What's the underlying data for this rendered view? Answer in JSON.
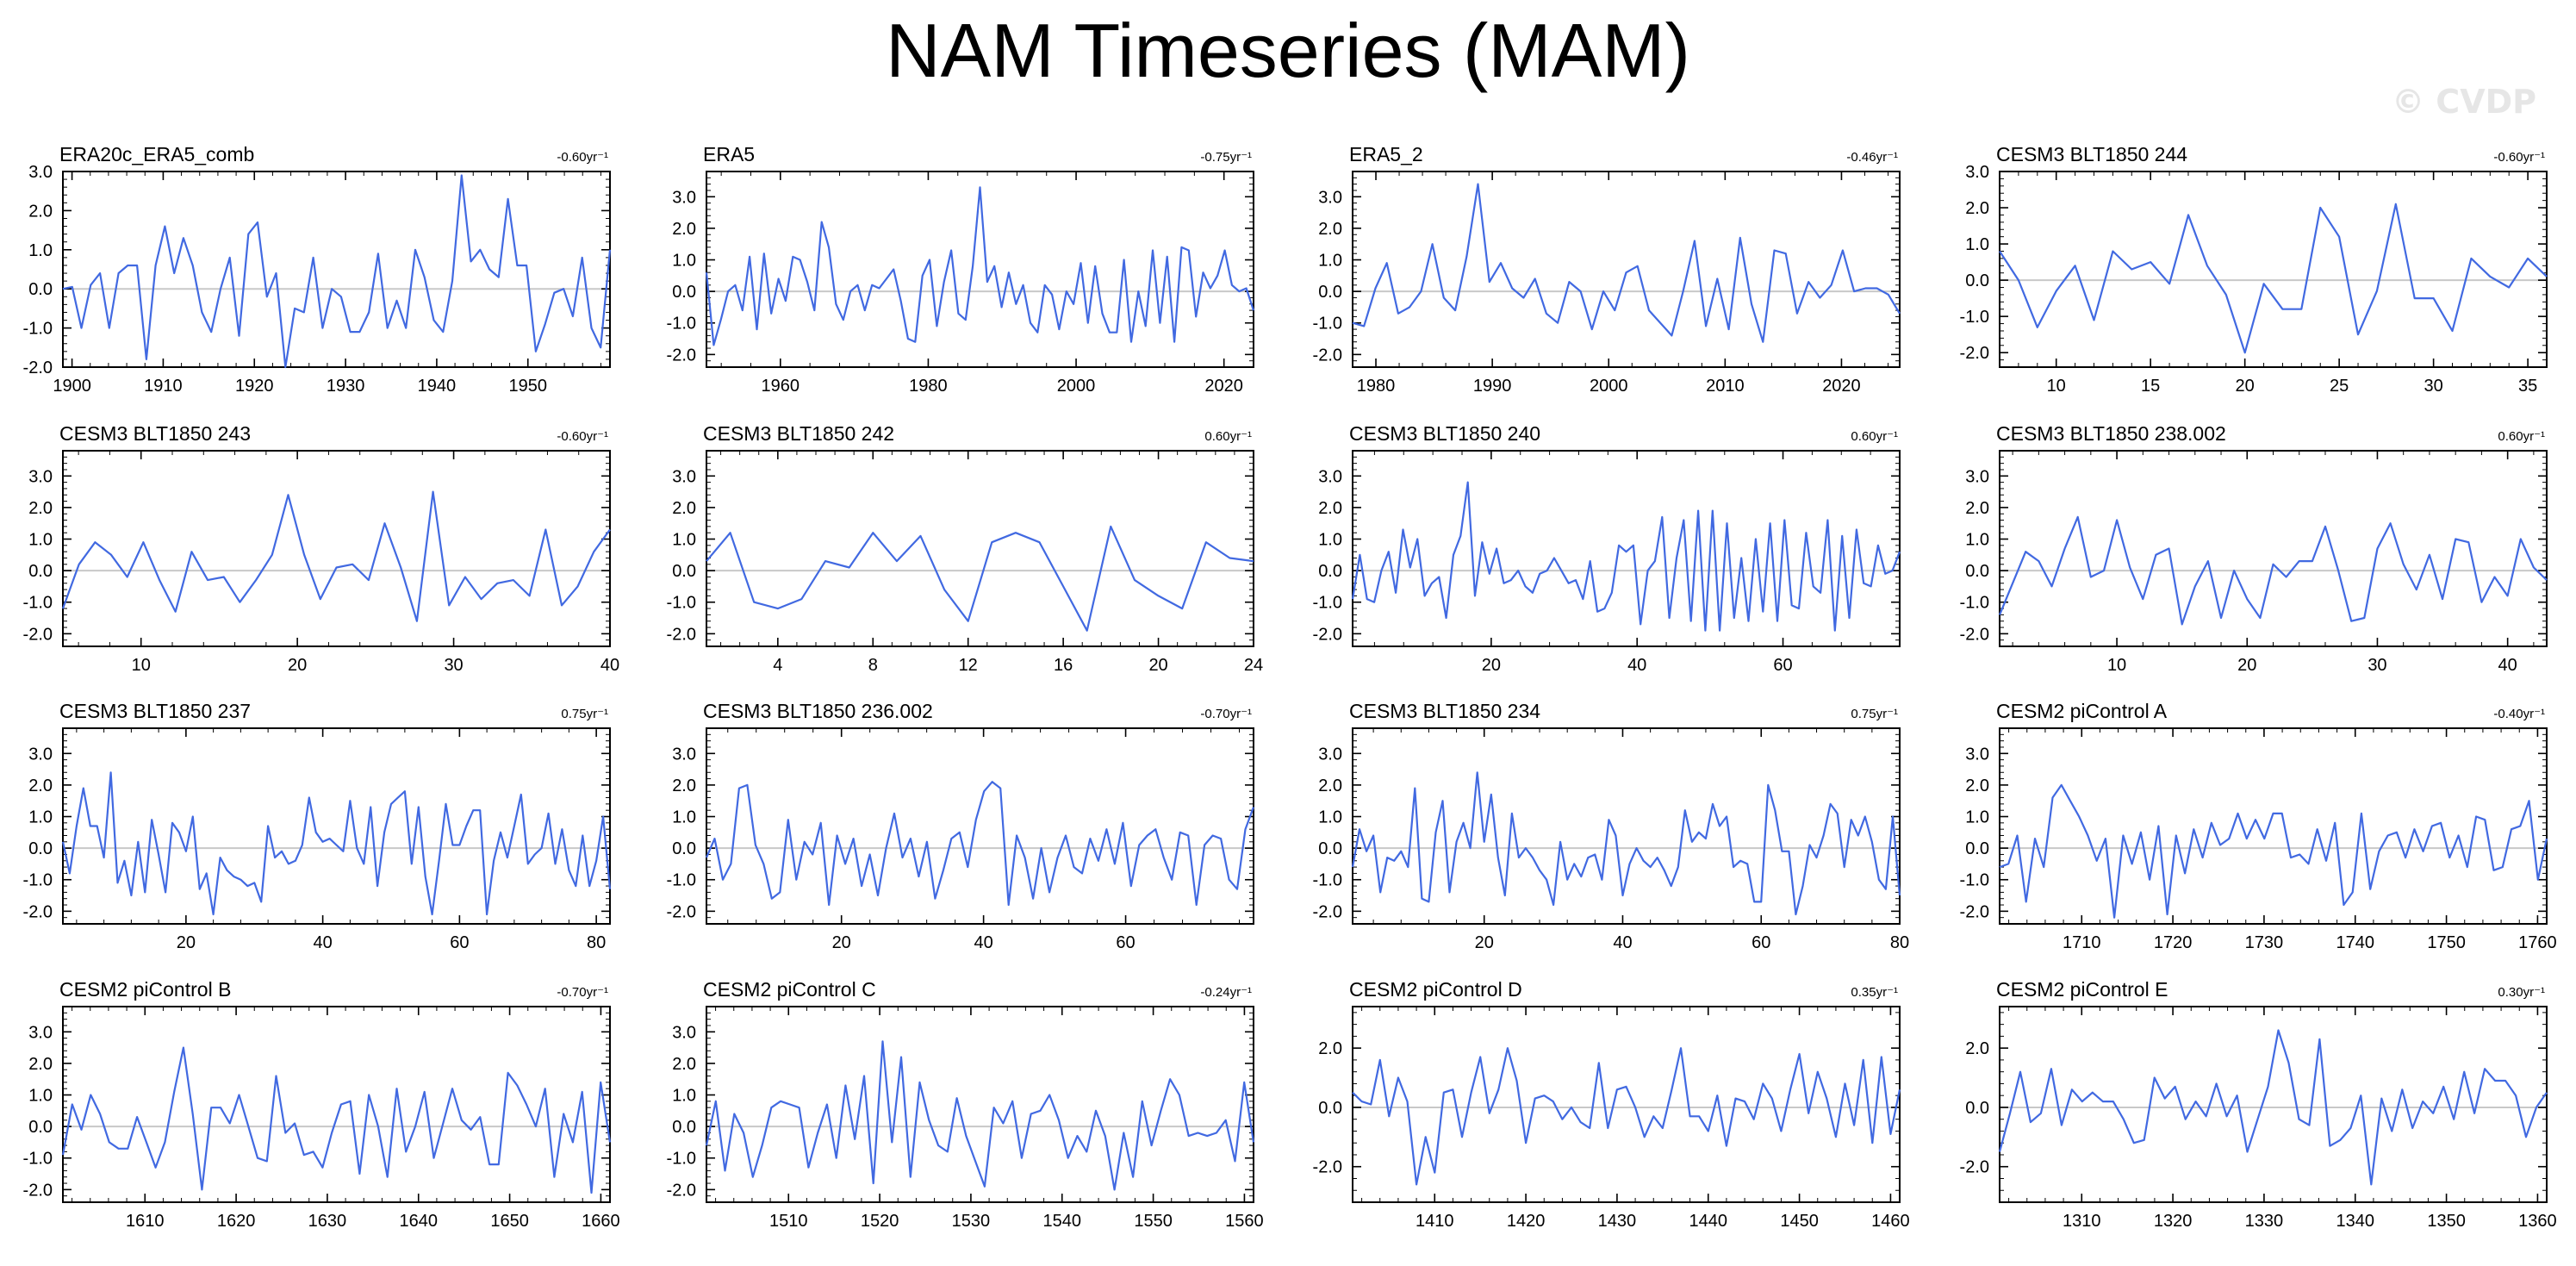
{
  "title": "NAM Timeseries (MAM)",
  "watermark": "© CVDP",
  "colors": {
    "line": "#4169E1",
    "zero": "#c8c8c8",
    "frame": "#000000"
  },
  "chart_data": [
    {
      "type": "line",
      "name": "ERA20c_ERA5_comb",
      "trend": "-0.60yr⁻¹",
      "xlim": [
        1899,
        1959
      ],
      "ylim": [
        -2.0,
        3.0
      ],
      "yticks": [
        -2,
        -1,
        0,
        1,
        2,
        3
      ],
      "xticks": [
        1900,
        1910,
        1920,
        1930,
        1940,
        1950
      ],
      "values": [
        0.0,
        0.05,
        -1.0,
        0.1,
        0.4,
        -1.0,
        0.4,
        0.6,
        0.6,
        -1.8,
        0.6,
        1.6,
        0.4,
        1.3,
        0.6,
        -0.6,
        -1.1,
        0.0,
        0.8,
        -1.2,
        1.4,
        1.7,
        -0.2,
        0.4,
        -2.0,
        -0.5,
        -0.6,
        0.8,
        -1.0,
        0.0,
        -0.2,
        -1.1,
        -1.1,
        -0.6,
        0.9,
        -1.0,
        -0.3,
        -1.0,
        1.0,
        0.3,
        -0.8,
        -1.1,
        0.2,
        2.9,
        0.7,
        1.0,
        0.5,
        0.3,
        2.3,
        0.6,
        0.6,
        -1.6,
        -0.9,
        -0.1,
        0.0,
        -0.7,
        0.8,
        -1.0,
        -1.5,
        1.0
      ]
    },
    {
      "type": "line",
      "name": "ERA5",
      "trend": "-0.75yr⁻¹",
      "xlim": [
        1950,
        2024
      ],
      "ylim": [
        -2.4,
        3.8
      ],
      "yticks": [
        -2,
        -1,
        0,
        1,
        2,
        3
      ],
      "xticks": [
        1960,
        1980,
        2000,
        2020
      ],
      "values": [
        0.6,
        -1.7,
        -0.9,
        0.0,
        0.2,
        -0.6,
        1.1,
        -1.2,
        1.2,
        -0.7,
        0.4,
        -0.3,
        1.1,
        1.0,
        0.3,
        -0.6,
        2.2,
        1.4,
        -0.4,
        -0.9,
        0.0,
        0.2,
        -0.6,
        0.2,
        0.1,
        0.4,
        0.7,
        -0.3,
        -1.5,
        -1.6,
        0.5,
        1.0,
        -1.1,
        0.3,
        1.3,
        -0.7,
        -0.9,
        0.8,
        3.3,
        0.3,
        0.8,
        -0.5,
        0.6,
        -0.4,
        0.2,
        -1.0,
        -1.3,
        0.2,
        -0.1,
        -1.2,
        0.0,
        -0.4,
        0.9,
        -1.0,
        0.8,
        -0.7,
        -1.3,
        -1.3,
        1.0,
        -1.6,
        0.0,
        -1.1,
        1.3,
        -1.0,
        1.1,
        -1.6,
        1.4,
        1.3,
        -0.8,
        0.6,
        0.1,
        0.5,
        1.3,
        0.2,
        0.0,
        0.1,
        -0.6
      ]
    },
    {
      "type": "line",
      "name": "ERA5_2",
      "trend": "-0.46yr⁻¹",
      "xlim": [
        1978,
        2025
      ],
      "ylim": [
        -2.4,
        3.8
      ],
      "yticks": [
        -2,
        -1,
        0,
        1,
        2,
        3
      ],
      "xticks": [
        1980,
        1990,
        2000,
        2010,
        2020
      ],
      "values": [
        -1.0,
        -1.1,
        0.1,
        0.9,
        -0.7,
        -0.5,
        0.0,
        1.5,
        -0.2,
        -0.6,
        1.1,
        3.4,
        0.3,
        0.9,
        0.1,
        -0.2,
        0.4,
        -0.7,
        -1.0,
        0.3,
        0.0,
        -1.2,
        0.0,
        -0.6,
        0.6,
        0.8,
        -0.6,
        -1.0,
        -1.4,
        0.0,
        1.6,
        -1.1,
        0.4,
        -1.2,
        1.7,
        -0.4,
        -1.6,
        1.3,
        1.2,
        -0.7,
        0.3,
        -0.2,
        0.2,
        1.3,
        0.0,
        0.1,
        0.1,
        -0.1,
        -0.7
      ]
    },
    {
      "type": "line",
      "name": "CESM3 BLT1850 244",
      "trend": "-0.60yr⁻¹",
      "xlim": [
        7,
        36
      ],
      "ylim": [
        -2.4,
        3.0
      ],
      "yticks": [
        -2,
        -1,
        0,
        1,
        2,
        3
      ],
      "xticks": [
        10,
        15,
        20,
        25,
        30,
        35
      ],
      "values": [
        0.8,
        0.0,
        -1.3,
        -0.3,
        0.4,
        -1.1,
        0.8,
        0.3,
        0.5,
        -0.1,
        1.8,
        0.4,
        -0.4,
        -2.0,
        -0.1,
        -0.8,
        -0.8,
        2.0,
        1.2,
        -1.5,
        -0.3,
        2.1,
        -0.5,
        -0.5,
        -1.4,
        0.6,
        0.1,
        -0.2,
        0.6,
        0.1
      ]
    },
    {
      "type": "line",
      "name": "CESM3 BLT1850 243",
      "trend": "-0.60yr⁻¹",
      "xlim": [
        5,
        40
      ],
      "ylim": [
        -2.4,
        3.8
      ],
      "yticks": [
        -2,
        -1,
        0,
        1,
        2,
        3
      ],
      "xticks": [
        10,
        20,
        30,
        40
      ],
      "values": [
        -1.2,
        0.2,
        0.9,
        0.5,
        -0.2,
        0.9,
        -0.3,
        -1.3,
        0.6,
        -0.3,
        -0.2,
        -1.0,
        -0.3,
        0.5,
        2.4,
        0.5,
        -0.9,
        0.1,
        0.2,
        -0.3,
        1.5,
        0.1,
        -1.6,
        2.5,
        -1.1,
        -0.2,
        -0.9,
        -0.4,
        -0.3,
        -0.8,
        1.3,
        -1.1,
        -0.5,
        0.6,
        1.3
      ]
    },
    {
      "type": "line",
      "name": "CESM3 BLT1850 242",
      "trend": "0.60yr⁻¹",
      "xlim": [
        1,
        24
      ],
      "ylim": [
        -2.4,
        3.8
      ],
      "yticks": [
        -2,
        -1,
        0,
        1,
        2,
        3
      ],
      "xticks": [
        4,
        8,
        12,
        16,
        20,
        24
      ],
      "values": [
        0.3,
        1.2,
        -1.0,
        -1.2,
        -0.9,
        0.3,
        0.1,
        1.2,
        0.3,
        1.1,
        -0.6,
        -1.6,
        0.9,
        1.2,
        0.9,
        -0.5,
        -1.9,
        1.4,
        -0.3,
        -0.8,
        -1.2,
        0.9,
        0.4,
        0.3
      ]
    },
    {
      "type": "line",
      "name": "CESM3 BLT1850 240",
      "trend": "0.60yr⁻¹",
      "xlim": [
        1,
        76
      ],
      "ylim": [
        -2.4,
        3.8
      ],
      "yticks": [
        -2,
        -1,
        0,
        1,
        2,
        3
      ],
      "xticks": [
        20,
        40,
        60
      ],
      "values": [
        -0.9,
        0.5,
        -0.9,
        -1.0,
        0.0,
        0.6,
        -0.7,
        1.3,
        0.1,
        1.0,
        -0.8,
        -0.4,
        -0.2,
        -1.5,
        0.5,
        1.1,
        2.8,
        -0.8,
        0.9,
        -0.1,
        0.7,
        -0.4,
        -0.3,
        0.0,
        -0.5,
        -0.7,
        -0.1,
        0.0,
        0.4,
        0.0,
        -0.4,
        -0.3,
        -0.9,
        0.3,
        -1.3,
        -1.2,
        -0.7,
        0.8,
        0.6,
        0.8,
        -1.7,
        0.0,
        0.3,
        1.7,
        -1.5,
        0.4,
        1.6,
        -1.6,
        1.9,
        -1.9,
        1.9,
        -1.9,
        1.5,
        -1.5,
        0.4,
        -1.6,
        1.0,
        -1.3,
        1.5,
        -1.6,
        1.6,
        -1.1,
        -1.2,
        1.2,
        -0.5,
        -0.7,
        1.6,
        -1.9,
        1.1,
        -1.5,
        1.3,
        -0.4,
        -0.5,
        0.8,
        -0.1,
        0.0,
        0.6
      ]
    },
    {
      "type": "line",
      "name": "CESM3 BLT1850 238.002",
      "trend": "0.60yr⁻¹",
      "xlim": [
        1,
        43
      ],
      "ylim": [
        -2.4,
        3.8
      ],
      "yticks": [
        -2,
        -1,
        0,
        1,
        2,
        3
      ],
      "xticks": [
        10,
        20,
        30,
        40
      ],
      "values": [
        -1.4,
        -0.4,
        0.6,
        0.3,
        -0.5,
        0.7,
        1.7,
        -0.2,
        0.0,
        1.6,
        0.1,
        -0.9,
        0.5,
        0.7,
        -1.7,
        -0.5,
        0.3,
        -1.5,
        0.0,
        -0.9,
        -1.5,
        0.2,
        -0.2,
        0.3,
        0.3,
        1.4,
        0.0,
        -1.6,
        -1.5,
        0.7,
        1.5,
        0.2,
        -0.6,
        0.5,
        -0.9,
        1.0,
        0.9,
        -1.0,
        -0.2,
        -0.8,
        1.0,
        0.1,
        -0.3
      ]
    },
    {
      "type": "line",
      "name": "CESM3 BLT1850 237",
      "trend": "0.75yr⁻¹",
      "xlim": [
        2,
        82
      ],
      "ylim": [
        -2.4,
        3.8
      ],
      "yticks": [
        -2,
        -1,
        0,
        1,
        2,
        3
      ],
      "xticks": [
        20,
        40,
        60,
        80
      ],
      "values": [
        0.2,
        -0.8,
        0.7,
        1.9,
        0.7,
        0.7,
        -0.3,
        2.4,
        -1.1,
        -0.4,
        -1.5,
        0.2,
        -1.4,
        0.9,
        -0.2,
        -1.4,
        0.8,
        0.5,
        -0.1,
        1.0,
        -1.3,
        -0.8,
        -2.1,
        -0.3,
        -0.7,
        -0.9,
        -1.0,
        -1.2,
        -1.1,
        -1.7,
        0.7,
        -0.3,
        -0.1,
        -0.5,
        -0.4,
        0.1,
        1.6,
        0.5,
        0.2,
        0.3,
        0.1,
        -0.1,
        1.5,
        0.0,
        -0.5,
        1.3,
        -1.2,
        0.5,
        1.4,
        1.6,
        1.8,
        -0.5,
        1.3,
        -0.9,
        -2.1,
        -0.4,
        1.4,
        0.1,
        0.1,
        0.7,
        1.2,
        1.2,
        -2.1,
        -0.4,
        0.5,
        -0.3,
        0.7,
        1.7,
        -0.5,
        -0.2,
        0.0,
        1.1,
        -0.5,
        0.6,
        -0.7,
        -1.2,
        0.4,
        -1.2,
        -0.4,
        1.0,
        -1.3
      ]
    },
    {
      "type": "line",
      "name": "CESM3 BLT1850 236.002",
      "trend": "-0.70yr⁻¹",
      "xlim": [
        1,
        78
      ],
      "ylim": [
        -2.4,
        3.8
      ],
      "yticks": [
        -2,
        -1,
        0,
        1,
        2,
        3
      ],
      "xticks": [
        20,
        40,
        60
      ],
      "values": [
        -0.3,
        0.3,
        -1.0,
        -0.5,
        1.9,
        2.0,
        0.1,
        -0.5,
        -1.6,
        -1.4,
        0.9,
        -1.0,
        0.2,
        -0.2,
        0.8,
        -1.8,
        0.4,
        -0.5,
        0.3,
        -1.2,
        -0.2,
        -1.5,
        0.0,
        1.1,
        -0.3,
        0.3,
        -0.9,
        0.2,
        -1.6,
        -0.7,
        0.3,
        0.5,
        -0.6,
        0.9,
        1.8,
        2.1,
        1.9,
        -1.8,
        0.4,
        -0.3,
        -1.6,
        0.0,
        -1.4,
        -0.3,
        0.4,
        -0.6,
        -0.8,
        0.3,
        -0.4,
        0.6,
        -0.5,
        0.8,
        -1.2,
        0.1,
        0.4,
        0.6,
        -0.3,
        -1.0,
        0.5,
        0.4,
        -1.8,
        0.1,
        0.4,
        0.3,
        -1.0,
        -1.3,
        0.6,
        1.3
      ]
    },
    {
      "type": "line",
      "name": "CESM3 BLT1850 234",
      "trend": "0.75yr⁻¹",
      "xlim": [
        1,
        80
      ],
      "ylim": [
        -2.4,
        3.8
      ],
      "yticks": [
        -2,
        -1,
        0,
        1,
        2,
        3
      ],
      "xticks": [
        20,
        40,
        60,
        80
      ],
      "values": [
        -0.6,
        0.6,
        -0.1,
        0.4,
        -1.4,
        -0.3,
        -0.4,
        -0.1,
        -0.6,
        1.9,
        -1.6,
        -1.7,
        0.5,
        1.5,
        -1.4,
        0.2,
        0.8,
        0.0,
        2.4,
        0.2,
        1.7,
        -0.3,
        -1.5,
        1.1,
        -0.3,
        0.0,
        -0.3,
        -0.7,
        -1.0,
        -1.8,
        0.2,
        -1.0,
        -0.5,
        -0.9,
        -0.3,
        -0.2,
        -1.0,
        0.9,
        0.4,
        -1.5,
        -0.5,
        0.0,
        -0.4,
        -0.6,
        -0.3,
        -0.7,
        -1.2,
        -0.6,
        1.2,
        0.2,
        0.5,
        0.3,
        1.4,
        0.7,
        1.0,
        -0.6,
        -0.4,
        -0.5,
        -1.7,
        -1.7,
        2.0,
        1.2,
        -0.1,
        -0.1,
        -2.1,
        -1.2,
        0.1,
        -0.3,
        0.4,
        1.4,
        1.1,
        -0.6,
        0.9,
        0.4,
        1.0,
        0.2,
        -1.0,
        -1.3,
        1.0,
        -1.5
      ]
    },
    {
      "type": "line",
      "name": "CESM2 piControl A",
      "trend": "-0.40yr⁻¹",
      "xlim": [
        1701,
        1761
      ],
      "ylim": [
        -2.4,
        3.8
      ],
      "yticks": [
        -2,
        -1,
        0,
        1,
        2,
        3
      ],
      "xticks": [
        1710,
        1720,
        1730,
        1740,
        1750,
        1760
      ],
      "values": [
        -0.6,
        -0.5,
        0.4,
        -1.7,
        0.3,
        -0.6,
        1.6,
        2.0,
        1.5,
        1.0,
        0.4,
        -0.4,
        0.3,
        -2.2,
        0.4,
        -0.5,
        0.5,
        -1.0,
        0.7,
        -2.1,
        0.4,
        -0.8,
        0.6,
        -0.3,
        0.8,
        0.1,
        0.3,
        1.1,
        0.3,
        0.9,
        0.3,
        1.1,
        1.1,
        -0.3,
        -0.2,
        -0.5,
        0.6,
        -0.4,
        0.8,
        -1.8,
        -1.4,
        1.1,
        -1.3,
        -0.1,
        0.4,
        0.5,
        -0.3,
        0.6,
        -0.1,
        0.7,
        0.8,
        -0.3,
        0.4,
        -0.6,
        1.0,
        0.9,
        -0.7,
        -0.6,
        0.6,
        0.7,
        1.5,
        -1.0,
        0.3
      ]
    },
    {
      "type": "line",
      "name": "CESM2 piControl B",
      "trend": "-0.70yr⁻¹",
      "xlim": [
        1601,
        1661
      ],
      "ylim": [
        -2.4,
        3.8
      ],
      "yticks": [
        -2,
        -1,
        0,
        1,
        2,
        3
      ],
      "xticks": [
        1610,
        1620,
        1630,
        1640,
        1650,
        1660
      ],
      "values": [
        -0.9,
        0.7,
        -0.1,
        1.0,
        0.4,
        -0.5,
        -0.7,
        -0.7,
        0.3,
        -0.5,
        -1.3,
        -0.5,
        1.1,
        2.5,
        0.4,
        -2.0,
        0.6,
        0.6,
        0.1,
        1.0,
        0.0,
        -1.0,
        -1.1,
        1.6,
        -0.2,
        0.1,
        -0.9,
        -0.8,
        -1.3,
        -0.2,
        0.7,
        0.8,
        -1.5,
        1.0,
        0.0,
        -1.6,
        1.2,
        -0.8,
        0.0,
        1.1,
        -1.0,
        0.1,
        1.2,
        0.2,
        -0.1,
        0.3,
        -1.2,
        -1.2,
        1.7,
        1.3,
        0.7,
        0.0,
        1.2,
        -1.6,
        0.4,
        -0.5,
        1.1,
        -2.1,
        1.4,
        -0.5
      ]
    },
    {
      "type": "line",
      "name": "CESM2 piControl C",
      "trend": "-0.24yr⁻¹",
      "xlim": [
        1501,
        1561
      ],
      "ylim": [
        -2.4,
        3.8
      ],
      "yticks": [
        -2,
        -1,
        0,
        1,
        2,
        3
      ],
      "xticks": [
        1510,
        1520,
        1530,
        1540,
        1550,
        1560
      ],
      "values": [
        -0.6,
        0.8,
        -1.4,
        0.4,
        -0.2,
        -1.6,
        -0.6,
        0.6,
        0.8,
        0.7,
        0.6,
        -1.3,
        -0.2,
        0.7,
        -1.0,
        1.3,
        -0.4,
        1.6,
        -1.8,
        2.7,
        -0.5,
        2.2,
        -1.6,
        1.4,
        0.2,
        -0.6,
        -0.8,
        0.9,
        -0.3,
        -1.1,
        -1.9,
        0.6,
        0.1,
        0.8,
        -1.0,
        0.4,
        0.5,
        1.0,
        0.2,
        -1.0,
        -0.3,
        -0.8,
        0.5,
        -0.3,
        -2.0,
        -0.2,
        -1.6,
        0.8,
        -0.6,
        0.5,
        1.5,
        1.0,
        -0.3,
        -0.2,
        -0.3,
        -0.2,
        0.2,
        -1.1,
        1.4,
        -0.5
      ]
    },
    {
      "type": "line",
      "name": "CESM2 piControl D",
      "trend": "0.35yr⁻¹",
      "xlim": [
        1401,
        1461
      ],
      "ylim": [
        -3.2,
        3.4
      ],
      "yticks": [
        -2,
        0,
        2
      ],
      "xticks": [
        1410,
        1420,
        1430,
        1440,
        1450,
        1460
      ],
      "values": [
        0.5,
        0.2,
        0.1,
        1.6,
        -0.3,
        1.0,
        0.2,
        -2.6,
        -1.0,
        -2.2,
        0.5,
        0.6,
        -1.0,
        0.5,
        1.7,
        -0.2,
        0.6,
        2.0,
        0.9,
        -1.2,
        0.3,
        0.4,
        0.2,
        -0.4,
        0.0,
        -0.5,
        -0.7,
        1.5,
        -0.7,
        0.6,
        0.7,
        0.0,
        -1.0,
        -0.3,
        -0.7,
        0.6,
        2.0,
        -0.3,
        -0.3,
        -0.8,
        0.4,
        -1.3,
        0.3,
        0.2,
        -0.4,
        0.8,
        0.3,
        -0.8,
        0.6,
        1.8,
        -0.2,
        1.2,
        0.3,
        -1.0,
        0.8,
        -0.6,
        1.6,
        -1.2,
        1.7,
        -0.9,
        0.6
      ]
    },
    {
      "type": "line",
      "name": "CESM2 piControl E",
      "trend": "0.30yr⁻¹",
      "xlim": [
        1301,
        1361
      ],
      "ylim": [
        -3.2,
        3.4
      ],
      "yticks": [
        -2,
        0,
        2
      ],
      "xticks": [
        1310,
        1320,
        1330,
        1340,
        1350,
        1360
      ],
      "values": [
        -1.5,
        -0.2,
        1.2,
        -0.5,
        -0.2,
        1.3,
        -0.6,
        0.6,
        0.2,
        0.5,
        0.2,
        0.2,
        -0.4,
        -1.2,
        -1.1,
        1.0,
        0.3,
        0.7,
        -0.4,
        0.2,
        -0.3,
        0.8,
        -0.3,
        0.4,
        -1.5,
        -0.4,
        0.7,
        2.6,
        1.5,
        -0.4,
        -0.6,
        2.3,
        -1.3,
        -1.1,
        -0.7,
        0.4,
        -2.6,
        0.3,
        -0.8,
        0.6,
        -0.7,
        0.2,
        -0.2,
        0.7,
        -0.4,
        1.2,
        -0.2,
        1.3,
        0.9,
        0.9,
        0.4,
        -1.0,
        0.0,
        0.5
      ]
    }
  ]
}
